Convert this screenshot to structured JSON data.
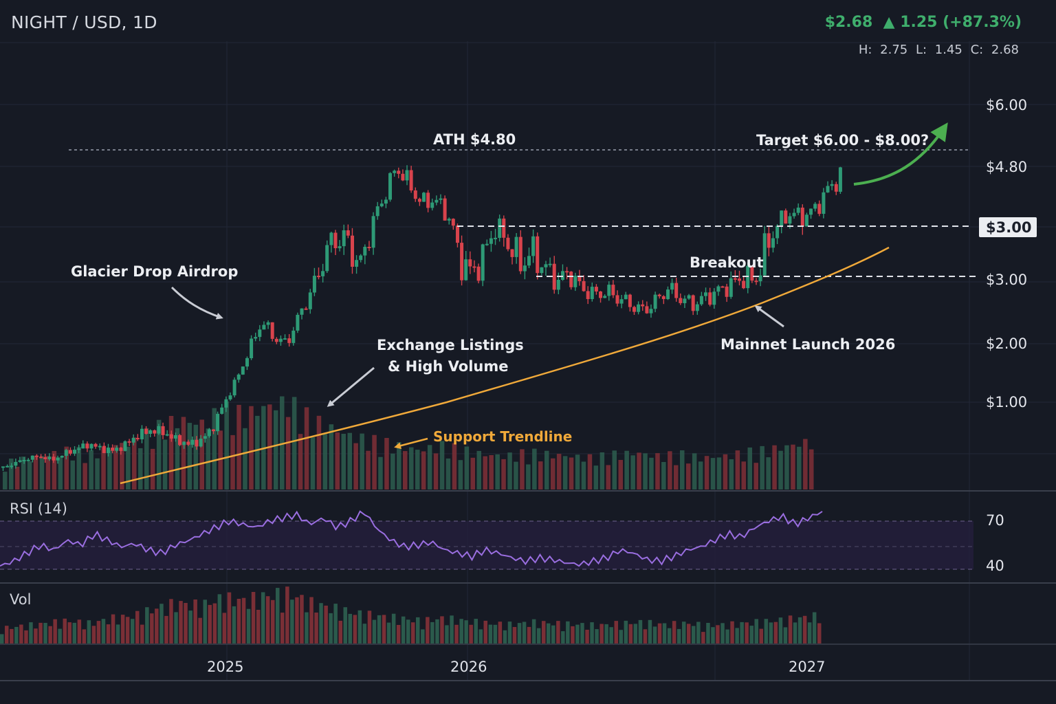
{
  "header": {
    "symbol": "NIGHT / USD, 1D",
    "price": "$2.68",
    "change": "▲ 1.25 (+87.3%)",
    "ohlc": "H: 2.75  L: 1.45  C: 2.68"
  },
  "colors": {
    "background": "#161a24",
    "up": "#2e8b6a",
    "down": "#d03a45",
    "rsi": "#9a6ee0",
    "trend": "#f0a93a",
    "target": "#4caf50"
  },
  "panes": {
    "rsi_label": "RSI (14)",
    "vol_label": "Vol"
  },
  "annotations": {
    "ath": "ATH $4.80",
    "target": "Target $6.00 - $8.00?",
    "glacier": "Glacier Drop Airdrop",
    "exchange_line1": "Exchange Listings",
    "exchange_line2": "& High Volume",
    "breakout": "Breakout",
    "mainnet": "Mainnet Launch 2026",
    "support": "Support Trendline"
  },
  "chart_data": {
    "type": "candlestick",
    "x_ticks": [
      "2025",
      "2026",
      "2027"
    ],
    "y_ticks": [
      "$6.00",
      "$4.80",
      "$3.00",
      "$3.00",
      "$2.00",
      "$1.00"
    ],
    "highlighted_price": "$3.00",
    "rsi_ticks": [
      "70",
      "40"
    ],
    "ath_level": 4.8,
    "breakout_level": 3.0,
    "price_path": [
      0.3,
      0.35,
      0.4,
      0.42,
      0.38,
      0.45,
      0.5,
      0.55,
      0.5,
      0.48,
      0.55,
      0.65,
      0.7,
      0.68,
      0.6,
      0.55,
      0.58,
      0.72,
      1.0,
      1.4,
      1.9,
      2.35,
      2.1,
      2.0,
      2.4,
      2.8,
      3.2,
      3.4,
      3.35,
      3.1,
      3.6,
      4.2,
      4.8,
      4.4,
      4.0,
      4.1,
      3.8,
      3.2,
      3.05,
      3.2,
      3.55,
      3.35,
      3.15,
      3.25,
      3.1,
      2.95,
      3.05,
      2.85,
      2.75,
      2.8,
      2.7,
      2.6,
      2.5,
      2.65,
      2.85,
      2.7,
      2.6,
      2.7,
      2.8,
      2.9,
      3.0,
      2.95,
      3.3,
      3.6,
      3.8,
      3.7,
      3.9,
      4.3,
      4.6
    ],
    "rsi_path": [
      42,
      45,
      50,
      55,
      52,
      58,
      55,
      62,
      58,
      54,
      56,
      52,
      50,
      55,
      58,
      62,
      66,
      70,
      68,
      66,
      70,
      72,
      74,
      68,
      72,
      66,
      70,
      76,
      65,
      58,
      54,
      55,
      57,
      52,
      50,
      48,
      52,
      50,
      47,
      45,
      47,
      46,
      44,
      43,
      45,
      47,
      52,
      50,
      46,
      45,
      48,
      52,
      54,
      58,
      62,
      60,
      66,
      70,
      73,
      68,
      72,
      76
    ],
    "volume_path": [
      0.3,
      0.35,
      0.4,
      0.45,
      0.4,
      0.5,
      0.55,
      0.7,
      0.8,
      0.75,
      0.9,
      0.85,
      0.95,
      1.0,
      0.8,
      0.7,
      0.6,
      0.55,
      0.5,
      0.45,
      0.5,
      0.45,
      0.4,
      0.38,
      0.42,
      0.4,
      0.38,
      0.36,
      0.4,
      0.42,
      0.38,
      0.4,
      0.36,
      0.38,
      0.42,
      0.45,
      0.5,
      0.55
    ]
  }
}
